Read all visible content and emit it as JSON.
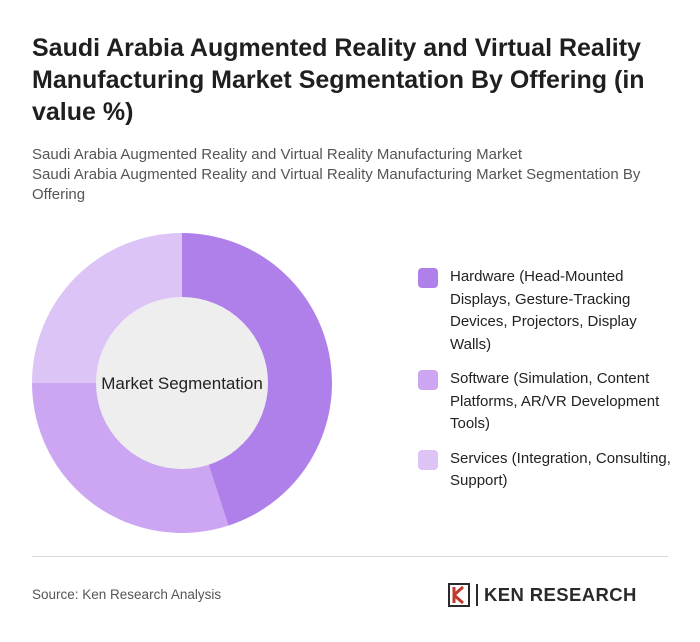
{
  "title": "Saudi Arabia Augmented Reality and Virtual Reality Manufacturing Market Segmentation By Offering (in value %)",
  "subtitle_line1": "Saudi Arabia Augmented Reality and Virtual Reality Manufacturing Market",
  "subtitle_line2": "Saudi Arabia Augmented Reality and Virtual Reality Manufacturing Market Segmentation By Offering",
  "center_label": "Market Segmentation",
  "source": "Source: Ken Research Analysis",
  "logo": {
    "text": "KEN RESEARCH",
    "icon": "ken-research-k-icon"
  },
  "colors": {
    "hardware": "#b080ea",
    "software": "#cca6f2",
    "services": "#dcc4f7",
    "hole": "#efeeee"
  },
  "chart_data": {
    "type": "pie",
    "variant": "donut",
    "categories": [
      "Hardware (Head-Mounted Displays, Gesture-Tracking Devices, Projectors, Display Walls)",
      "Software (Simulation, Content Platforms, AR/VR Development Tools)",
      "Services (Integration, Consulting, Support)"
    ],
    "values": [
      45,
      30,
      25
    ],
    "unit": "%",
    "legend_position": "right"
  }
}
